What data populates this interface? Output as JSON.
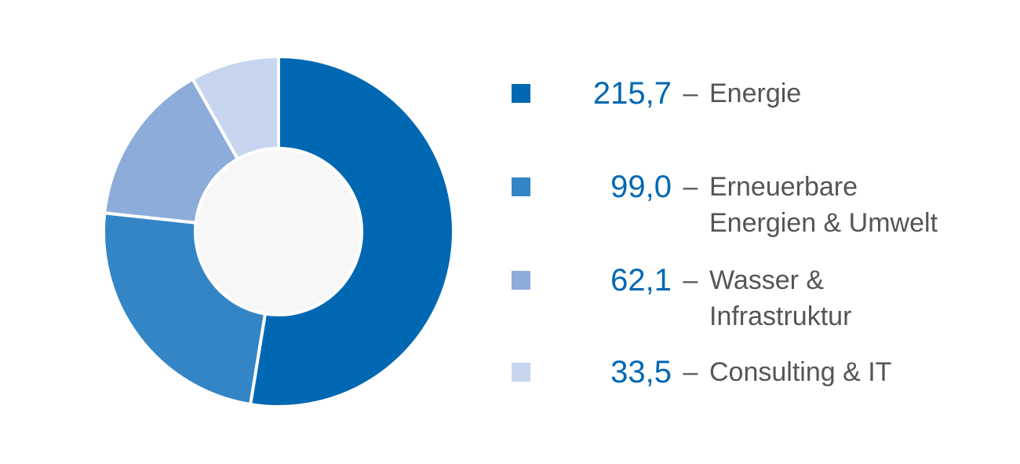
{
  "chart_data": {
    "type": "pie",
    "categories": [
      "Energie",
      "Erneuerbare Energien & Umwelt",
      "Wasser & Infrastruktur",
      "Consulting & IT"
    ],
    "values": [
      215.7,
      99.0,
      62.1,
      33.5
    ],
    "value_labels": [
      "215,7",
      "99,0",
      "62,1",
      "33,5"
    ],
    "colors": [
      "#0068b3",
      "#3385c6",
      "#8eacd9",
      "#c7d5ee"
    ],
    "separator": "–"
  }
}
